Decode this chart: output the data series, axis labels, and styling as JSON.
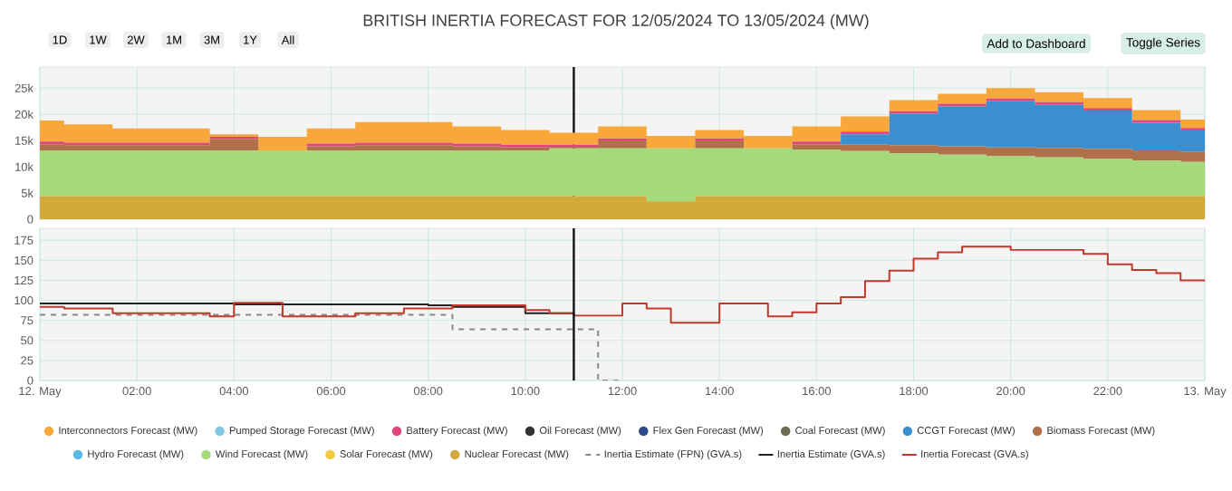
{
  "chart_data": [
    {
      "type": "area",
      "stacked": true,
      "title": "BRITISH INERTIA FORECAST FOR 12/05/2024 TO 13/05/2024 (MW)",
      "annotations": [
        "1D",
        "1W",
        "2W",
        "1M",
        "3M",
        "1Y",
        "All",
        "Add to Dashboard",
        "Toggle Series"
      ],
      "x": [
        0,
        1,
        2,
        3,
        4,
        5,
        6,
        7,
        8,
        9,
        10,
        11,
        12,
        13,
        14,
        15,
        16,
        17,
        18,
        19,
        20,
        21,
        22,
        23,
        24
      ],
      "xlim": [
        0,
        24
      ],
      "xticks": [
        0,
        2,
        4,
        6,
        8,
        10,
        12,
        14,
        16,
        18,
        20,
        22,
        24
      ],
      "ylim": [
        0,
        29000
      ],
      "yticks": [
        0,
        {
          "value": 5000,
          "label": "5k"
        },
        {
          "value": 10000,
          "label": "10k"
        },
        {
          "value": 15000,
          "label": "15k"
        },
        {
          "value": 20000,
          "label": "20k"
        },
        {
          "value": 25000,
          "label": "25k"
        }
      ],
      "tick_labels": "y",
      "grid": true,
      "legend": "bottom",
      "ref_lines": [
        {
          "axis": "x",
          "value": 11,
          "color": "#111111"
        }
      ],
      "series": [
        {
          "name": "Nuclear Forecast (MW)",
          "color": "#d4a93c",
          "values": [
            4400,
            4400,
            4400,
            4400,
            4400,
            4400,
            4400,
            4400,
            4400,
            4400,
            4400,
            4400,
            4400,
            3400,
            4400,
            4400,
            4400,
            4400,
            4400,
            4400,
            4400,
            4400,
            4400,
            4400,
            4400
          ]
        },
        {
          "name": "Solar Forecast (MW)",
          "color": "#f5c842",
          "values": [
            null,
            null,
            null,
            null,
            null,
            null,
            null,
            null,
            null,
            null,
            null,
            null,
            null,
            null,
            null,
            null,
            null,
            null,
            null,
            null,
            null,
            null,
            null,
            null,
            null
          ]
        },
        {
          "name": "Wind Forecast (MW)",
          "color": "#a6d97a",
          "values": [
            8700,
            8700,
            8700,
            8700,
            8700,
            8700,
            8700,
            8700,
            8700,
            8700,
            8700,
            9100,
            9100,
            10100,
            9100,
            9100,
            8900,
            8600,
            8200,
            7900,
            7600,
            7400,
            7100,
            6800,
            6500
          ]
        },
        {
          "name": "Hydro Forecast (MW)",
          "color": "#5bb8e8",
          "values": [
            null,
            null,
            null,
            null,
            null,
            null,
            null,
            null,
            null,
            null,
            null,
            null,
            null,
            null,
            null,
            null,
            null,
            null,
            null,
            null,
            null,
            null,
            null,
            null,
            null
          ]
        },
        {
          "name": "Biomass Forecast (MW)",
          "color": "#b0714a",
          "values": [
            1200,
            1000,
            1000,
            1000,
            2200,
            0,
            800,
            1000,
            1000,
            800,
            600,
            300,
            1500,
            0,
            1500,
            0,
            1000,
            1200,
            1500,
            1600,
            1700,
            1800,
            1900,
            1900,
            2000
          ]
        },
        {
          "name": "CCGT Forecast (MW)",
          "color": "#3a8fd0",
          "values": [
            0,
            0,
            0,
            0,
            0,
            0,
            0,
            0,
            0,
            0,
            0,
            0,
            0,
            0,
            0,
            0,
            0,
            2000,
            6000,
            7600,
            8800,
            8200,
            7300,
            5300,
            4000
          ]
        },
        {
          "name": "Coal Forecast (MW)",
          "color": "#6b6b50",
          "values": [
            null,
            null,
            null,
            null,
            null,
            null,
            null,
            null,
            null,
            null,
            null,
            null,
            null,
            null,
            null,
            null,
            null,
            null,
            null,
            null,
            null,
            null,
            null,
            null,
            null
          ]
        },
        {
          "name": "Flex Gen Forecast (MW)",
          "color": "#2e4a8a",
          "values": [
            null,
            null,
            null,
            null,
            null,
            null,
            null,
            null,
            null,
            null,
            null,
            null,
            null,
            null,
            null,
            null,
            null,
            null,
            null,
            null,
            null,
            null,
            null,
            null,
            null
          ]
        },
        {
          "name": "Oil Forecast (MW)",
          "color": "#333333",
          "values": [
            null,
            null,
            null,
            null,
            null,
            null,
            null,
            null,
            null,
            null,
            null,
            null,
            null,
            null,
            null,
            null,
            null,
            null,
            null,
            null,
            null,
            null,
            null,
            null,
            null
          ]
        },
        {
          "name": "Battery Forecast (MW)",
          "color": "#e0457b",
          "values": [
            500,
            500,
            500,
            500,
            400,
            0,
            500,
            500,
            500,
            500,
            500,
            400,
            400,
            0,
            400,
            0,
            500,
            500,
            500,
            500,
            500,
            500,
            500,
            500,
            500
          ]
        },
        {
          "name": "Pumped Storage Forecast (MW)",
          "color": "#7ec8e3",
          "values": [
            null,
            null,
            null,
            null,
            null,
            null,
            null,
            null,
            null,
            null,
            null,
            null,
            null,
            null,
            null,
            null,
            null,
            null,
            null,
            null,
            null,
            null,
            null,
            null,
            null
          ]
        },
        {
          "name": "Interconnectors Forecast (MW)",
          "color": "#f8a83b",
          "values": [
            4000,
            3500,
            2700,
            2700,
            500,
            2600,
            2900,
            3900,
            3900,
            3300,
            2800,
            2300,
            2300,
            2400,
            1600,
            2400,
            2900,
            2900,
            2100,
            1900,
            2000,
            1900,
            1900,
            1900,
            1600
          ]
        }
      ]
    },
    {
      "type": "step",
      "xlim": [
        0,
        24
      ],
      "xticks": [
        {
          "value": 0,
          "label": "12. May"
        },
        {
          "value": 2,
          "label": "02:00"
        },
        {
          "value": 4,
          "label": "04:00"
        },
        {
          "value": 6,
          "label": "06:00"
        },
        {
          "value": 8,
          "label": "08:00"
        },
        {
          "value": 10,
          "label": "10:00"
        },
        {
          "value": 12,
          "label": "12:00"
        },
        {
          "value": 14,
          "label": "14:00"
        },
        {
          "value": 16,
          "label": "16:00"
        },
        {
          "value": 18,
          "label": "18:00"
        },
        {
          "value": 20,
          "label": "20:00"
        },
        {
          "value": 22,
          "label": "22:00"
        },
        {
          "value": 24,
          "label": "13. May"
        }
      ],
      "ylim": [
        0,
        190
      ],
      "yticks": [
        0,
        25,
        50,
        75,
        100,
        125,
        150,
        175
      ],
      "grid": true,
      "legend": "bottom",
      "ref_lines": [
        {
          "axis": "x",
          "value": 11,
          "color": "#111111"
        }
      ],
      "series": [
        {
          "name": "Inertia Estimate (FPN) (GVA.s)",
          "color": "#888888",
          "line_style": "dashed",
          "x": [
            0,
            8.5,
            11.5,
            12
          ],
          "values": [
            82,
            64,
            0,
            0
          ]
        },
        {
          "name": "Inertia Estimate (GVA.s)",
          "color": "#222222",
          "x": [
            0,
            4,
            8,
            8.5,
            10,
            11
          ],
          "values": [
            96,
            95,
            94,
            92,
            84,
            84
          ]
        },
        {
          "name": "Inertia Forecast (GVA.s)",
          "color": "#c0392b",
          "x": [
            0,
            0.5,
            1.5,
            3.5,
            4,
            5,
            6.5,
            7.5,
            8.5,
            10,
            10.5,
            11,
            12,
            12.5,
            13,
            14,
            15,
            15.5,
            16,
            16.5,
            17,
            17.5,
            18,
            18.5,
            19,
            20,
            21.5,
            22,
            22.5,
            23,
            23.5,
            24
          ],
          "values": [
            92,
            90,
            84,
            80,
            97,
            80,
            84,
            90,
            94,
            88,
            84,
            81,
            96,
            90,
            72,
            96,
            80,
            85,
            96,
            104,
            124,
            137,
            152,
            160,
            167,
            163,
            158,
            145,
            138,
            134,
            125,
            125
          ]
        }
      ]
    }
  ]
}
